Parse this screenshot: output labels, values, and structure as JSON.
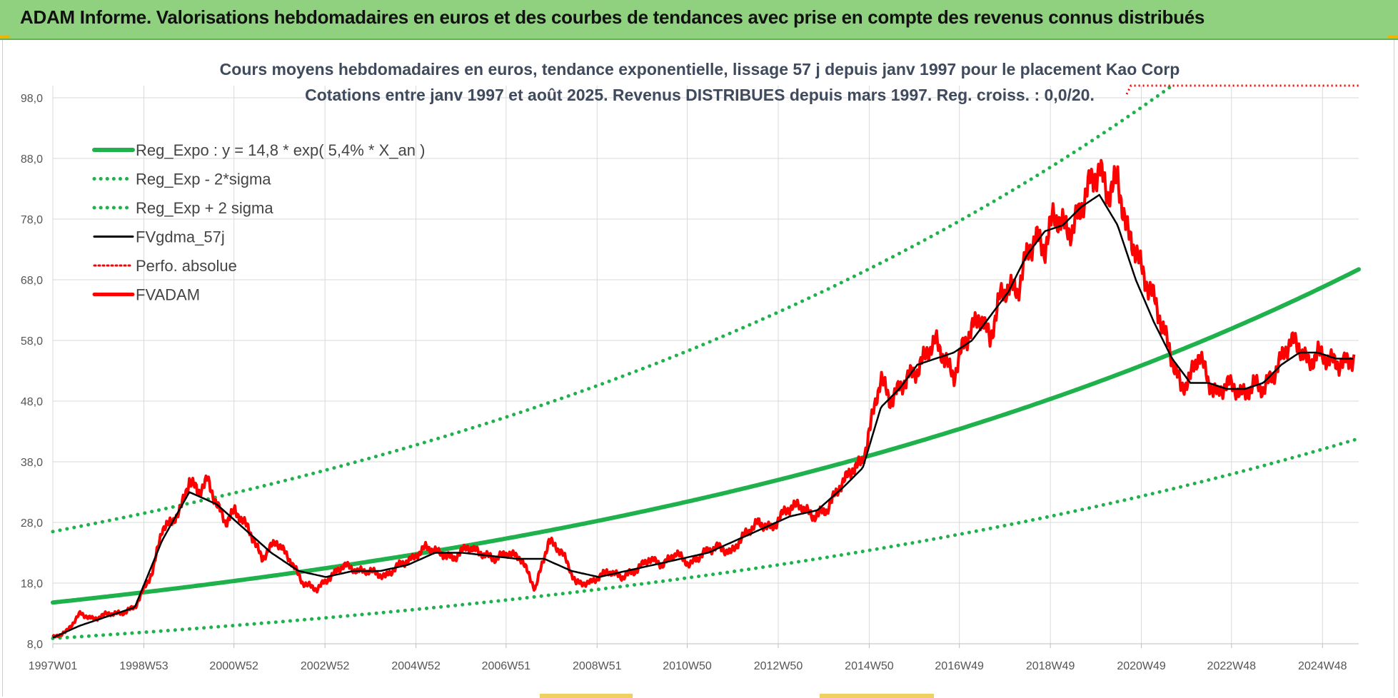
{
  "banner": {
    "title": "ADAM Informe. Valorisations hebdomadaires en euros et des courbes de tendances avec prise en compte des revenus connus distribués"
  },
  "colors": {
    "reg_expo": "#1fb14b",
    "sigma": "#1fb14b",
    "fvgdma": "#000000",
    "perfo": "#ff0000",
    "fvadam": "#ff0000",
    "banner": "#8fd17f"
  },
  "chart_data": {
    "type": "line",
    "title": "Cours moyens hebdomadaires en euros, tendance exponentielle, lissage 57 j depuis janv 1997 pour le placement Kao Corp",
    "subtitle": "Cotations entre janv 1997 et août 2025. Revenus DISTRIBUES depuis mars 1997. Reg. croiss. : 0,0/20.",
    "xlabel": "",
    "ylabel": "",
    "ylim": [
      8,
      100
    ],
    "xlim": [
      1997.0,
      2025.7
    ],
    "yticks": [
      "98,0",
      "88,0",
      "78,0",
      "68,0",
      "58,0",
      "48,0",
      "38,0",
      "28,0",
      "18,0",
      "8,0"
    ],
    "xticks": [
      "1997W01",
      "1998W53",
      "2000W52",
      "2002W52",
      "2004W52",
      "2006W51",
      "2008W51",
      "2010W50",
      "2012W50",
      "2014W50",
      "2016W49",
      "2018W49",
      "2020W49",
      "2022W48",
      "2024W48"
    ],
    "grid": true,
    "legend_position": "top-left",
    "legend": [
      {
        "key": "reg_expo",
        "label": "Reg_Expo : y = 14,8 * exp( 5,4% *  X_an )",
        "style": "solid-thick"
      },
      {
        "key": "minus2",
        "label": "Reg_Exp - 2*sigma",
        "style": "dotted"
      },
      {
        "key": "plus2",
        "label": "Reg_Exp + 2 sigma",
        "style": "dotted"
      },
      {
        "key": "fvgdma",
        "label": "FVgdma_57j",
        "style": "solid"
      },
      {
        "key": "perfo",
        "label": "Perfo. absolue",
        "style": "dotted"
      },
      {
        "key": "fvadam",
        "label": "FVADAM",
        "style": "solid-thick"
      }
    ],
    "regression": {
      "a": 14.8,
      "b": 0.054,
      "lower_factor": 0.6,
      "upper_factor": 1.79
    },
    "perfo_level": 100,
    "perfo_start_x": 2020.6,
    "fvadam": {
      "x": [
        1997.0,
        1997.3,
        1997.6,
        1997.9,
        1998.2,
        1998.5,
        1998.8,
        1999.0,
        1999.2,
        1999.4,
        1999.6,
        1999.8,
        2000.0,
        2000.2,
        2000.4,
        2000.6,
        2000.8,
        2001.0,
        2001.3,
        2001.6,
        2001.9,
        2002.2,
        2002.5,
        2002.8,
        2003.1,
        2003.4,
        2003.7,
        2004.0,
        2004.3,
        2004.6,
        2004.9,
        2005.2,
        2005.5,
        2005.8,
        2006.1,
        2006.4,
        2006.7,
        2007.0,
        2007.3,
        2007.6,
        2007.9,
        2008.2,
        2008.5,
        2008.8,
        2009.0,
        2009.2,
        2009.5,
        2009.8,
        2010.1,
        2010.4,
        2010.7,
        2011.0,
        2011.3,
        2011.6,
        2011.9,
        2012.2,
        2012.5,
        2012.8,
        2013.1,
        2013.4,
        2013.7,
        2014.0,
        2014.3,
        2014.6,
        2014.8,
        2015.0,
        2015.2,
        2015.4,
        2015.6,
        2015.8,
        2016.0,
        2016.2,
        2016.4,
        2016.6,
        2016.8,
        2017.0,
        2017.2,
        2017.4,
        2017.6,
        2017.8,
        2018.0,
        2018.2,
        2018.4,
        2018.6,
        2018.8,
        2019.0,
        2019.2,
        2019.4,
        2019.6,
        2019.8,
        2020.0,
        2020.2,
        2020.4,
        2020.6,
        2020.8,
        2021.0,
        2021.2,
        2021.4,
        2021.6,
        2021.8,
        2022.0,
        2022.2,
        2022.4,
        2022.6,
        2022.8,
        2023.0,
        2023.2,
        2023.4,
        2023.6,
        2023.8,
        2024.0,
        2024.2,
        2024.4,
        2024.6,
        2024.8,
        2025.0,
        2025.3,
        2025.6
      ],
      "values": [
        9,
        10,
        13,
        12,
        13,
        13,
        14,
        17,
        20,
        27,
        28,
        30,
        35,
        33,
        35,
        31,
        28,
        30,
        27,
        22,
        25,
        22,
        18,
        17,
        19,
        21,
        20,
        20,
        19,
        21,
        22,
        24,
        23,
        22,
        24,
        23,
        22,
        23,
        22,
        17,
        25,
        23,
        18,
        18,
        19,
        20,
        19,
        20,
        22,
        21,
        23,
        21,
        23,
        24,
        23,
        26,
        28,
        27,
        30,
        31,
        29,
        30,
        34,
        37,
        38,
        45,
        52,
        48,
        50,
        52,
        53,
        56,
        58,
        55,
        52,
        57,
        60,
        62,
        58,
        65,
        67,
        66,
        72,
        75,
        73,
        79,
        77,
        76,
        80,
        84,
        86,
        82,
        85,
        76,
        73,
        68,
        65,
        60,
        55,
        50,
        52,
        56,
        51,
        49,
        51,
        50,
        49,
        51,
        50,
        52,
        55,
        58,
        57,
        54,
        56,
        55,
        54,
        55
      ],
      "lw": 4
    },
    "fvgdma": {
      "x": [
        1997.0,
        1997.6,
        1998.2,
        1998.8,
        1999.4,
        2000.0,
        2000.6,
        2001.2,
        2001.8,
        2002.4,
        2003.0,
        2003.6,
        2004.2,
        2004.8,
        2005.4,
        2006.0,
        2006.6,
        2007.2,
        2007.8,
        2008.4,
        2009.0,
        2009.6,
        2010.2,
        2010.8,
        2011.4,
        2012.0,
        2012.6,
        2013.2,
        2013.8,
        2014.4,
        2014.8,
        2015.2,
        2015.6,
        2016.0,
        2016.4,
        2016.8,
        2017.2,
        2017.6,
        2018.0,
        2018.4,
        2018.8,
        2019.2,
        2019.6,
        2020.0,
        2020.4,
        2020.8,
        2021.2,
        2021.6,
        2022.0,
        2022.4,
        2022.8,
        2023.2,
        2023.6,
        2024.0,
        2024.4,
        2024.8,
        2025.2,
        2025.6
      ],
      "values": [
        9,
        11,
        12.5,
        14,
        25,
        33,
        31,
        27,
        23,
        20,
        19,
        20,
        20,
        21,
        23,
        23,
        22.5,
        22,
        22,
        20,
        19,
        20,
        21,
        22,
        23,
        25,
        27,
        29,
        30,
        34,
        37,
        47,
        50,
        54,
        55,
        56,
        58,
        62,
        66,
        72,
        76,
        77,
        80,
        82,
        77,
        68,
        61,
        55,
        51,
        51,
        50,
        50,
        51,
        54,
        56,
        56,
        55,
        55
      ],
      "lw": 2.5
    }
  }
}
